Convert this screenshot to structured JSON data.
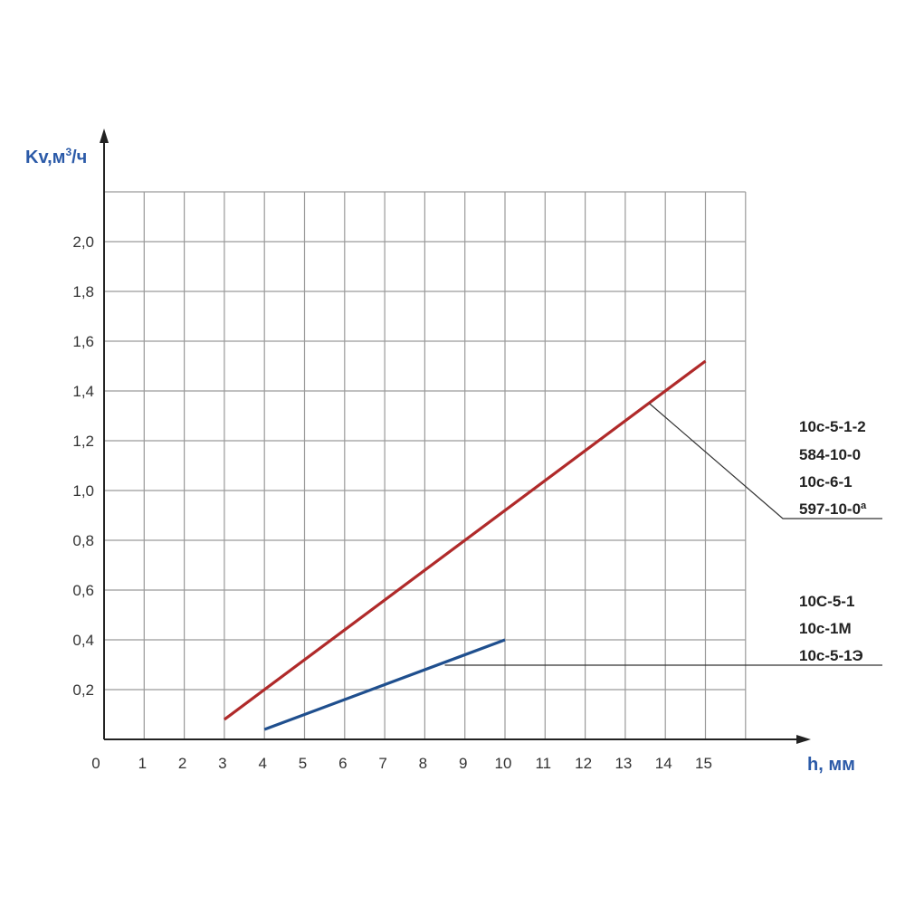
{
  "chart_data": {
    "type": "line",
    "title": "",
    "ylabel": "Kv,м³/ч",
    "ylabel_parts": {
      "base": "Kv,м",
      "sup": "3",
      "tail": "/ч"
    },
    "xlabel": "h, мм",
    "xlim": [
      0,
      16
    ],
    "ylim": [
      0,
      2.2
    ],
    "grid": true,
    "x_ticks": [
      "0",
      "1",
      "2",
      "3",
      "4",
      "5",
      "6",
      "7",
      "8",
      "9",
      "10",
      "11",
      "12",
      "13",
      "14",
      "15"
    ],
    "y_ticks": [
      {
        "value": 0.2,
        "label": "0,2"
      },
      {
        "value": 0.4,
        "label": "0,4"
      },
      {
        "value": 0.6,
        "label": "0,6"
      },
      {
        "value": 0.8,
        "label": "0,8"
      },
      {
        "value": 1.0,
        "label": "1,0"
      },
      {
        "value": 1.2,
        "label": "1,2"
      },
      {
        "value": 1.4,
        "label": "1,4"
      },
      {
        "value": 1.6,
        "label": "1,6"
      },
      {
        "value": 1.8,
        "label": "1,8"
      },
      {
        "value": 2.0,
        "label": "2,0"
      }
    ],
    "series": [
      {
        "color": "#b02a2a",
        "x": [
          3,
          15
        ],
        "y": [
          0.08,
          1.52
        ],
        "legend_lines": [
          "10с-5-1-2",
          "584-10-0",
          "10с-6-1",
          "597-10-0ª"
        ],
        "leader_from": [
          13.6,
          1.35
        ]
      },
      {
        "color": "#1f4f8e",
        "x": [
          4,
          10
        ],
        "y": [
          0.04,
          0.4
        ],
        "legend_lines": [
          "10С-5-1",
          "10с-1М",
          "10с-5-1Э"
        ],
        "leader_from": [
          8.5,
          0.3
        ]
      }
    ]
  },
  "colors": {
    "axis_title": "#2b5aa8",
    "grid": "#9a9a9a",
    "axis": "#222222"
  }
}
